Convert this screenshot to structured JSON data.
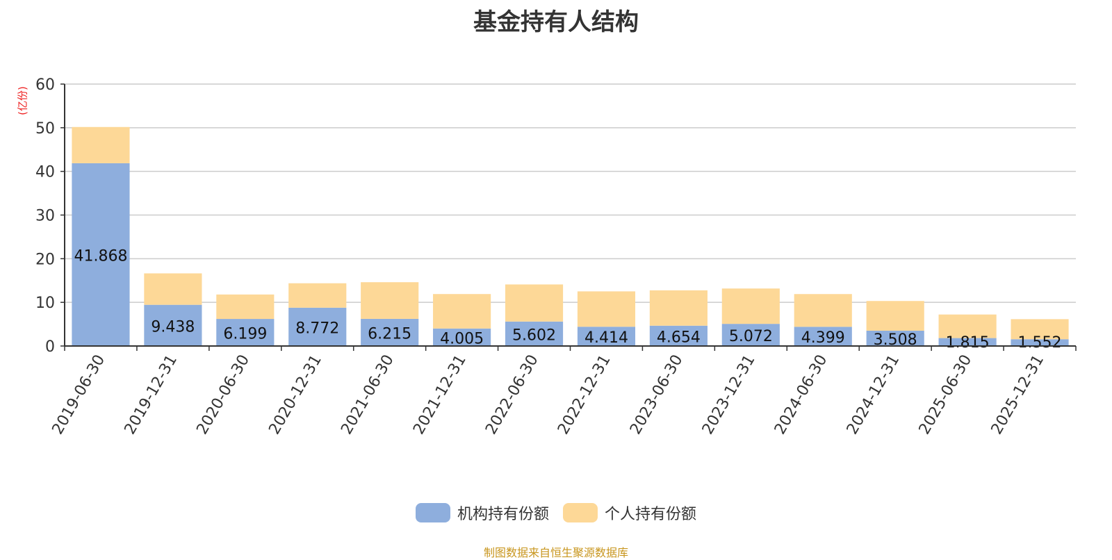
{
  "chart_data": {
    "type": "bar",
    "stacked": true,
    "title": "基金持有人结构",
    "ylabel": "(亿份)",
    "xlabel": "",
    "ylim": [
      0,
      60
    ],
    "yticks": [
      "0",
      "10",
      "20",
      "30",
      "40",
      "50",
      "60"
    ],
    "grid": true,
    "legend_position": "bottom",
    "categories": [
      "2019-06-30",
      "2019-12-31",
      "2020-06-30",
      "2020-12-31",
      "2021-06-30",
      "2021-12-31",
      "2022-06-30",
      "2022-12-31",
      "2023-06-30",
      "2023-12-31",
      "2024-06-30",
      "2024-12-31",
      "2025-06-30",
      "2025-12-31"
    ],
    "series": [
      {
        "name": "机构持有份额",
        "color": "#8eaedd",
        "values": [
          41.868,
          9.438,
          6.199,
          8.772,
          6.215,
          4.005,
          5.602,
          4.414,
          4.654,
          5.072,
          4.399,
          3.508,
          1.815,
          1.552
        ],
        "labels": [
          "41.868",
          "9.438",
          "6.199",
          "8.772",
          "6.215",
          "4.005",
          "5.602",
          "4.414",
          "4.654",
          "5.072",
          "4.399",
          "3.508",
          "1.815",
          "1.552"
        ]
      },
      {
        "name": "个人持有份额",
        "color": "#fdd897",
        "values": [
          8.3,
          7.2,
          5.6,
          5.6,
          8.4,
          7.9,
          8.5,
          8.1,
          8.1,
          8.1,
          7.5,
          6.8,
          5.4,
          4.6
        ]
      }
    ],
    "source": "制图数据来自恒生聚源数据库"
  }
}
